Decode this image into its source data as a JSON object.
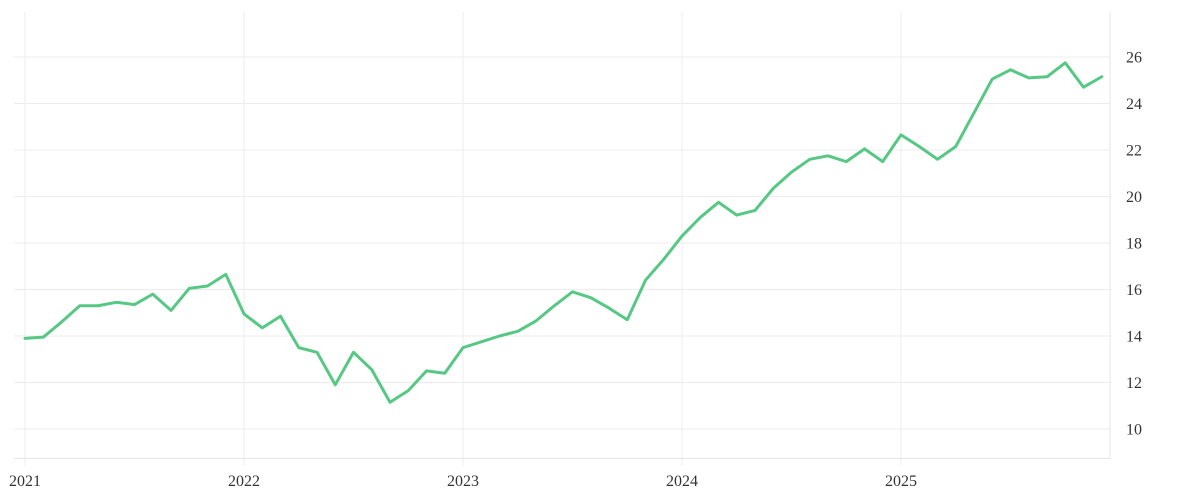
{
  "chart_data": {
    "type": "line",
    "x_start": "2021-01",
    "x_frequency": "monthly",
    "values": [
      13.9,
      13.95,
      14.6,
      15.3,
      15.3,
      15.45,
      15.35,
      15.8,
      15.1,
      16.05,
      16.15,
      16.65,
      14.95,
      14.35,
      14.85,
      13.5,
      13.3,
      11.9,
      13.3,
      12.55,
      11.15,
      11.65,
      12.5,
      12.4,
      13.5,
      13.75,
      14.0,
      14.2,
      14.65,
      15.3,
      15.9,
      15.65,
      15.2,
      14.7,
      16.4,
      17.3,
      18.3,
      19.1,
      19.75,
      19.2,
      19.4,
      20.35,
      21.05,
      21.6,
      21.75,
      21.5,
      22.05,
      21.5,
      22.65,
      22.15,
      21.6,
      22.15,
      23.6,
      25.05,
      25.45,
      25.1,
      25.15,
      25.75,
      24.7,
      25.15
    ],
    "x_tick_labels": [
      "2021",
      "2022",
      "2023",
      "2024",
      "2025"
    ],
    "x_tick_indices": [
      0,
      12,
      24,
      36,
      48
    ],
    "y_ticks": [
      10,
      12,
      14,
      16,
      18,
      20,
      22,
      24,
      26
    ],
    "y_axis_side": "right",
    "ylim": [
      8.75,
      27.9
    ],
    "grid": true,
    "legend": "none",
    "colors": {
      "line": "#57c884",
      "grid": "#ececec",
      "axis": "#e4e4e4",
      "label": "#333333",
      "background": "#ffffff"
    }
  }
}
